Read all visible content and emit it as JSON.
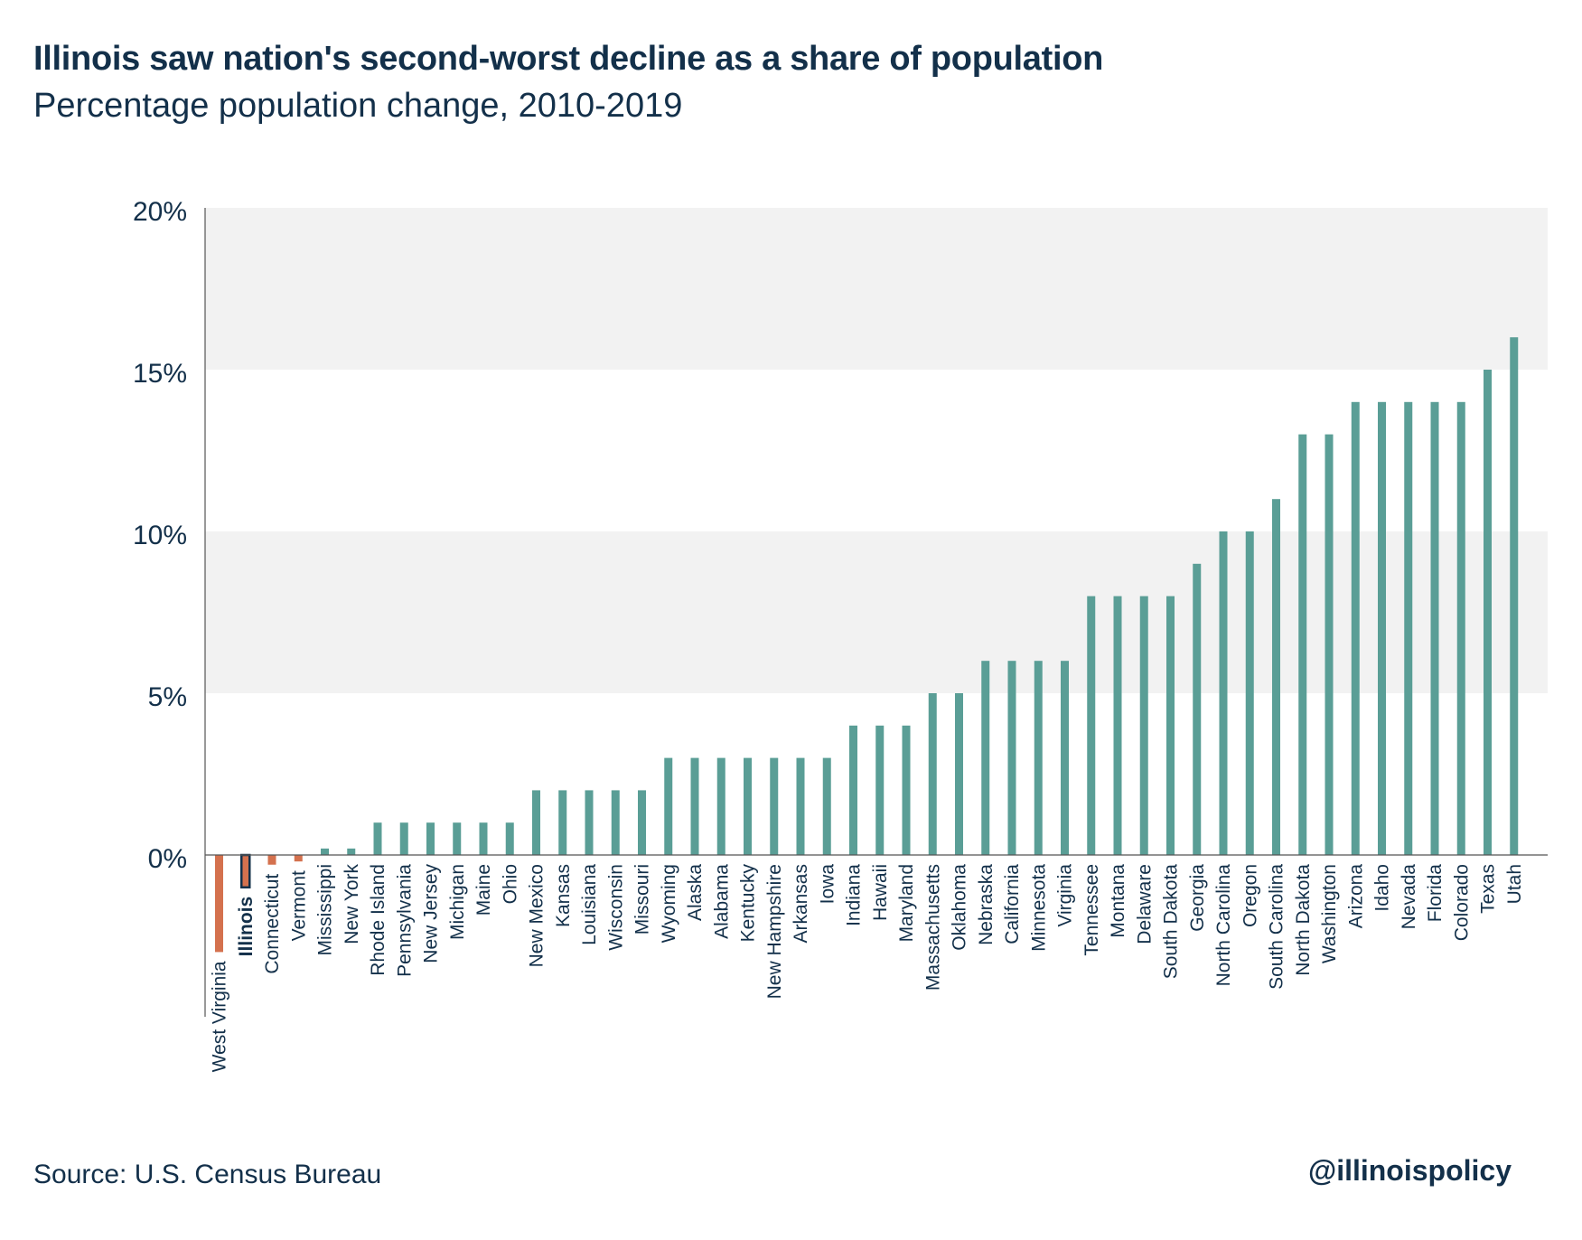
{
  "header": {
    "title": "Illinois saw nation's second-worst decline as a share of population",
    "subtitle": "Percentage population change, 2010-2019"
  },
  "footer": {
    "source": "Source: U.S. Census Bureau",
    "handle": "@illinoispolicy"
  },
  "colors": {
    "negative": "#d4714e",
    "positive": "#5a9e96",
    "highlight_border": "#13304a",
    "band": "#f2f2f2",
    "text": "#13304a"
  },
  "chart_data": {
    "type": "bar",
    "title": "Illinois saw nation's second-worst decline as a share of population",
    "subtitle": "Percentage population change, 2010-2019",
    "xlabel": "",
    "ylabel": "",
    "ylim": [
      -5,
      20
    ],
    "yticks": [
      0,
      5,
      10,
      15,
      20
    ],
    "ytick_labels": [
      "0%",
      "5%",
      "10%",
      "15%",
      "20%"
    ],
    "grid": "alternating horizontal bands",
    "legend": "none",
    "highlight": "Illinois",
    "categories": [
      "West Virginia",
      "Illinois",
      "Connecticut",
      "Vermont",
      "Mississippi",
      "New York",
      "Rhode Island",
      "Pennsylvania",
      "New Jersey",
      "Michigan",
      "Maine",
      "Ohio",
      "New Mexico",
      "Kansas",
      "Louisiana",
      "Wisconsin",
      "Missouri",
      "Wyoming",
      "Alaska",
      "Alabama",
      "Kentucky",
      "New Hampshire",
      "Arkansas",
      "Iowa",
      "Indiana",
      "Hawaii",
      "Maryland",
      "Massachusetts",
      "Oklahoma",
      "Nebraska",
      "California",
      "Minnesota",
      "Virginia",
      "Tennessee",
      "Montana",
      "Delaware",
      "South Dakota",
      "Georgia",
      "North Carolina",
      "Oregon",
      "South Carolina",
      "North Dakota",
      "Washington",
      "Arizona",
      "Idaho",
      "Nevada",
      "Florida",
      "Colorado",
      "Texas",
      "Utah"
    ],
    "values": [
      -3.0,
      -1.0,
      -0.3,
      -0.2,
      0.2,
      0.2,
      1.0,
      1.0,
      1.0,
      1.0,
      1.0,
      1.0,
      2.0,
      2.0,
      2.0,
      2.0,
      2.0,
      3.0,
      3.0,
      3.0,
      3.0,
      3.0,
      3.0,
      3.0,
      4.0,
      4.0,
      4.0,
      5.0,
      5.0,
      6.0,
      6.0,
      6.0,
      6.0,
      8.0,
      8.0,
      8.0,
      8.0,
      9.0,
      10.0,
      10.0,
      11.0,
      13.0,
      13.0,
      14.0,
      14.0,
      14.0,
      14.0,
      14.0,
      15.0,
      16.0
    ]
  }
}
